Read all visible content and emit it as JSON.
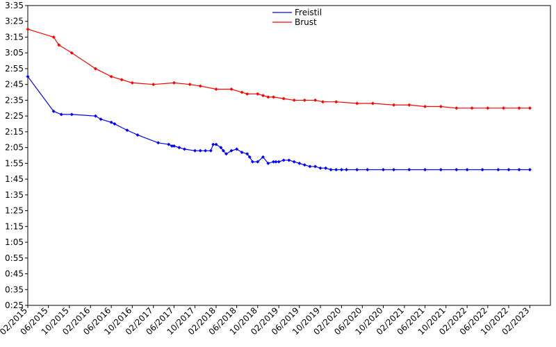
{
  "chart_data": {
    "type": "line",
    "title": "",
    "xlabel": "",
    "ylabel": "",
    "x_tick_labels": [
      "02/2015",
      "06/2015",
      "10/2015",
      "02/2016",
      "06/2016",
      "10/2016",
      "02/2017",
      "06/2017",
      "10/2017",
      "02/2018",
      "06/2018",
      "10/2018",
      "02/2019",
      "06/2019",
      "10/2019",
      "02/2020",
      "06/2020",
      "10/2020",
      "02/2021",
      "06/2021",
      "10/2021",
      "02/2022",
      "06/2022",
      "10/2022",
      "02/2023"
    ],
    "y_tick_labels": [
      "0:25",
      "0:35",
      "0:45",
      "0:55",
      "1:05",
      "1:15",
      "1:25",
      "1:35",
      "1:45",
      "1:55",
      "2:05",
      "2:15",
      "2:25",
      "2:35",
      "2:45",
      "2:55",
      "3:05",
      "3:15",
      "3:25",
      "3:35"
    ],
    "y_unit": "time (m:ss)",
    "ylim_seconds": [
      25,
      215
    ],
    "xlim": [
      "2015-02-01",
      "2023-06-01"
    ],
    "grid": false,
    "legend_position": "top-center",
    "series": [
      {
        "name": "Freistil",
        "color": "#0000ff",
        "points": [
          [
            "2015-02-01",
            170
          ],
          [
            "2015-07-01",
            148
          ],
          [
            "2015-08-15",
            146
          ],
          [
            "2015-10-15",
            146
          ],
          [
            "2016-03-01",
            145
          ],
          [
            "2016-04-01",
            143
          ],
          [
            "2016-06-01",
            141
          ],
          [
            "2016-06-20",
            140
          ],
          [
            "2016-09-01",
            136
          ],
          [
            "2016-11-01",
            133
          ],
          [
            "2017-03-01",
            128
          ],
          [
            "2017-05-01",
            127
          ],
          [
            "2017-05-20",
            126
          ],
          [
            "2017-06-01",
            126
          ],
          [
            "2017-07-01",
            125
          ],
          [
            "2017-08-01",
            124
          ],
          [
            "2017-10-01",
            123
          ],
          [
            "2017-11-01",
            123
          ],
          [
            "2017-12-01",
            123
          ],
          [
            "2018-01-01",
            123
          ],
          [
            "2018-01-15",
            127
          ],
          [
            "2018-02-01",
            127
          ],
          [
            "2018-03-01",
            125
          ],
          [
            "2018-03-15",
            123
          ],
          [
            "2018-04-01",
            121
          ],
          [
            "2018-05-01",
            123
          ],
          [
            "2018-06-01",
            124
          ],
          [
            "2018-07-01",
            122
          ],
          [
            "2018-08-01",
            121
          ],
          [
            "2018-08-15",
            119
          ],
          [
            "2018-09-01",
            116
          ],
          [
            "2018-10-01",
            116
          ],
          [
            "2018-11-01",
            119
          ],
          [
            "2018-12-01",
            115
          ],
          [
            "2019-01-01",
            116
          ],
          [
            "2019-01-15",
            116
          ],
          [
            "2019-02-01",
            116
          ],
          [
            "2019-03-01",
            117
          ],
          [
            "2019-04-01",
            117
          ],
          [
            "2019-05-01",
            116
          ],
          [
            "2019-06-01",
            115
          ],
          [
            "2019-07-01",
            114
          ],
          [
            "2019-08-01",
            113
          ],
          [
            "2019-09-01",
            113
          ],
          [
            "2019-10-01",
            112
          ],
          [
            "2019-11-01",
            112
          ],
          [
            "2019-12-01",
            111
          ],
          [
            "2020-01-01",
            111
          ],
          [
            "2020-02-01",
            111
          ],
          [
            "2020-03-01",
            111
          ],
          [
            "2020-05-01",
            111
          ],
          [
            "2020-07-01",
            111
          ],
          [
            "2020-10-01",
            111
          ],
          [
            "2020-12-01",
            111
          ],
          [
            "2021-03-01",
            111
          ],
          [
            "2021-06-01",
            111
          ],
          [
            "2021-09-01",
            111
          ],
          [
            "2021-12-01",
            111
          ],
          [
            "2022-02-01",
            111
          ],
          [
            "2022-05-01",
            111
          ],
          [
            "2022-08-01",
            111
          ],
          [
            "2022-10-01",
            111
          ],
          [
            "2022-12-01",
            111
          ],
          [
            "2023-02-01",
            111
          ]
        ]
      },
      {
        "name": "Brust",
        "color": "#ff0000",
        "points": [
          [
            "2015-02-01",
            200
          ],
          [
            "2015-07-01",
            195
          ],
          [
            "2015-08-01",
            190
          ],
          [
            "2015-10-15",
            185
          ],
          [
            "2016-03-01",
            175
          ],
          [
            "2016-06-01",
            170
          ],
          [
            "2016-08-01",
            168
          ],
          [
            "2016-10-01",
            166
          ],
          [
            "2017-02-01",
            165
          ],
          [
            "2017-06-01",
            166
          ],
          [
            "2017-09-01",
            165
          ],
          [
            "2017-11-01",
            164
          ],
          [
            "2018-02-01",
            162
          ],
          [
            "2018-05-01",
            162
          ],
          [
            "2018-07-01",
            160
          ],
          [
            "2018-08-01",
            159
          ],
          [
            "2018-10-01",
            159
          ],
          [
            "2018-11-01",
            158
          ],
          [
            "2018-12-01",
            157
          ],
          [
            "2019-01-01",
            157
          ],
          [
            "2019-03-01",
            156
          ],
          [
            "2019-05-01",
            155
          ],
          [
            "2019-07-01",
            155
          ],
          [
            "2019-09-01",
            155
          ],
          [
            "2019-10-15",
            154
          ],
          [
            "2020-01-01",
            154
          ],
          [
            "2020-05-01",
            153
          ],
          [
            "2020-08-01",
            153
          ],
          [
            "2020-12-01",
            152
          ],
          [
            "2021-03-01",
            152
          ],
          [
            "2021-06-01",
            151
          ],
          [
            "2021-09-01",
            151
          ],
          [
            "2021-12-01",
            150
          ],
          [
            "2022-03-01",
            150
          ],
          [
            "2022-06-01",
            150
          ],
          [
            "2022-09-01",
            150
          ],
          [
            "2022-12-01",
            150
          ],
          [
            "2023-02-01",
            150
          ]
        ]
      }
    ]
  }
}
